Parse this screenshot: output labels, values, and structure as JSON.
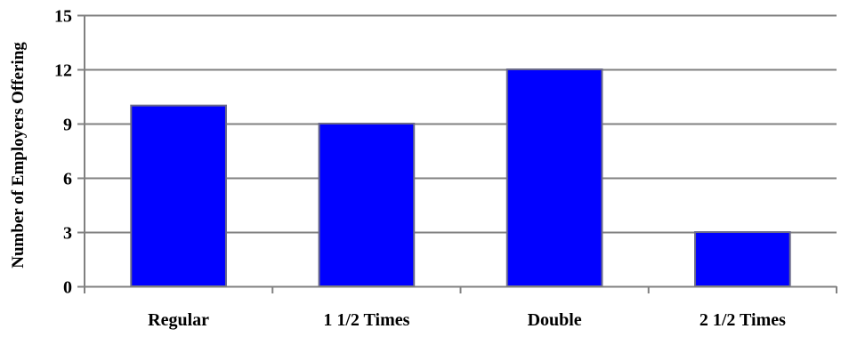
{
  "chart_data": {
    "type": "bar",
    "categories": [
      "Regular",
      "1 1/2 Times",
      "Double",
      "2 1/2 Times"
    ],
    "values": [
      10,
      9,
      12,
      3
    ],
    "xlabel": "",
    "ylabel": "Number of Employers Offering",
    "ylim": [
      0,
      15
    ],
    "yticks": [
      0,
      3,
      6,
      9,
      12,
      15
    ],
    "grid": true,
    "legend": "none",
    "colors": {
      "bar": "#0000ff",
      "bar_edge": "#6a6a8a",
      "grid": "#808080",
      "axis": "#808080"
    }
  }
}
